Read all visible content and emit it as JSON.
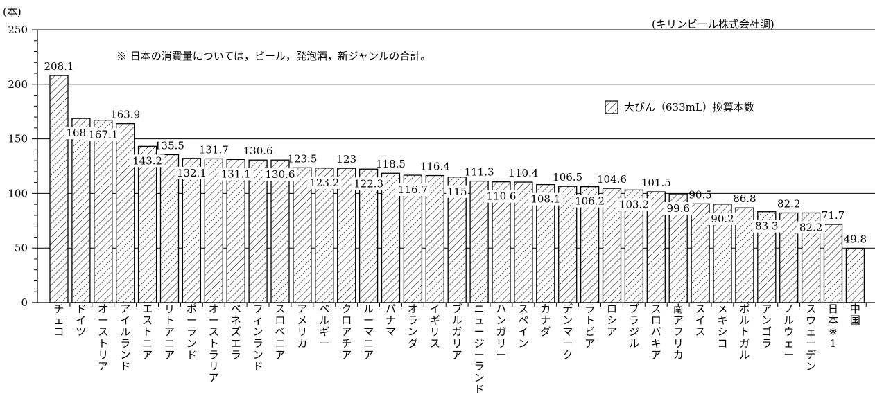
{
  "unit_label": "(本)",
  "source_note": "(キリンビール株式会社調)",
  "footnote": "※ 日本の消費量については，ビール，発泡酒，新ジャンルの合計。",
  "legend_label": "大びん（633mL）換算本数",
  "chart_data": {
    "type": "bar",
    "ylim": [
      0,
      250
    ],
    "yticks": [
      0,
      50,
      100,
      150,
      200,
      250
    ],
    "grid": true,
    "categories": [
      "チェコ",
      "ドイツ",
      "オーストリア",
      "アイルランド",
      "エストニア",
      "リトアニア",
      "ポーランド",
      "オーストラリア",
      "ベネズエラ",
      "フィンランド",
      "スロベニア",
      "アメリカ",
      "ベルギー",
      "クロアチア",
      "ルーマニア",
      "パナマ",
      "オランダ",
      "イギリス",
      "ブルガリア",
      "ニュージーランド",
      "ハンガリー",
      "スペイン",
      "カナダ",
      "デンマーク",
      "ラトビア",
      "ロシア",
      "ブラジル",
      "スロバキア",
      "南アフリカ",
      "スイス",
      "メキシコ",
      "ポルトガル",
      "アンゴラ",
      "ノルウェー",
      "スウェーデン",
      "日本※1",
      "中国"
    ],
    "values": [
      208.1,
      168.7,
      167.1,
      163.9,
      143.2,
      135.5,
      132.1,
      131.7,
      131.1,
      130.6,
      130.6,
      123.5,
      123.2,
      123,
      122.3,
      118.5,
      116.7,
      116.4,
      115,
      111.3,
      110.6,
      110.4,
      108.1,
      106.5,
      106.2,
      104.6,
      103.2,
      101.5,
      99.6,
      90.5,
      90.2,
      86.8,
      83.3,
      82.2,
      82.2,
      71.7,
      49.8
    ],
    "value_labels": [
      "208.1",
      "168.7",
      "167.1",
      "163.9",
      "143.2",
      "135.5",
      "132.1",
      "131.7",
      "131.1",
      "130.6",
      "130.6",
      "123.5",
      "123.2",
      "123",
      "122.3",
      "118.5",
      "116.7",
      "116.4",
      "115",
      "111.3",
      "110.6",
      "110.4",
      "108.1",
      "106.5",
      "106.2",
      "104.6",
      "103.2",
      "101.5",
      "99.6",
      "90.5",
      "90.2",
      "86.8",
      "83.3",
      "82.2",
      "82.2",
      "71.7",
      "49.8"
    ],
    "label_inside": [
      false,
      true,
      true,
      false,
      true,
      false,
      true,
      false,
      true,
      false,
      true,
      false,
      true,
      false,
      true,
      false,
      true,
      false,
      true,
      false,
      true,
      false,
      true,
      false,
      true,
      false,
      true,
      false,
      true,
      false,
      true,
      false,
      true,
      false,
      true,
      false,
      false
    ]
  }
}
